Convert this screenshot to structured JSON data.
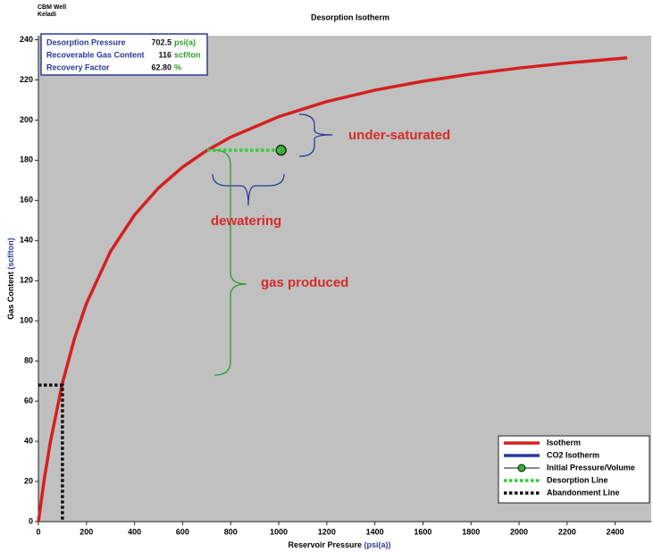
{
  "chart_data": {
    "type": "line",
    "well_label": "CBM Well",
    "well_name": "Keladi",
    "title": "Desorption Isotherm",
    "x_label": {
      "text": "Reservoir Pressure",
      "unit": "(psi(a))"
    },
    "y_label": {
      "text": "Gas Content",
      "unit": "(scf/ton)"
    },
    "xlim": [
      0,
      2550
    ],
    "xticks": [
      0,
      200,
      400,
      600,
      800,
      1000,
      1200,
      1400,
      1600,
      1800,
      2000,
      2200,
      2400
    ],
    "ylim": [
      0,
      242
    ],
    "yticks": [
      0,
      20,
      40,
      60,
      80,
      100,
      120,
      140,
      160,
      180,
      200,
      220,
      240
    ],
    "background": "#c0c0c0",
    "legend": "bottom-right",
    "info": [
      {
        "label": "Desorption Pressure",
        "value": "702.5",
        "unit": "psi(a)"
      },
      {
        "label": "Recoverable Gas Content",
        "value": "116",
        "unit": "scf/ton"
      },
      {
        "label": "Recovery Factor",
        "value": "62.80",
        "unit": "%"
      }
    ],
    "annotations": [
      "under-saturated",
      "dewatering",
      "gas produced"
    ],
    "series": [
      {
        "name": "Isotherm",
        "color": "#d42020",
        "style": "solid",
        "x": [
          0,
          25,
          50,
          100,
          150,
          200,
          300,
          400,
          500,
          600,
          700,
          800,
          1000,
          1200,
          1400,
          1600,
          1800,
          2000,
          2200,
          2450
        ],
        "values": [
          0,
          21.6,
          39.8,
          69.0,
          91.2,
          108.7,
          134.6,
          152.7,
          166.2,
          176.6,
          184.8,
          191.5,
          201.7,
          209.2,
          214.9,
          219.3,
          222.9,
          225.9,
          228.4,
          231.0
        ]
      },
      {
        "name": "CO2 Isotherm",
        "color": "#2a3a9a",
        "style": "solid",
        "x": [],
        "values": []
      },
      {
        "name": "Initial Pressure/Volume",
        "color": "#3cb030",
        "style": "marker",
        "x": [
          1010
        ],
        "values": [
          185
        ]
      },
      {
        "name": "Desorption Line",
        "color": "#33cc33",
        "style": "dotted",
        "x": [
          702.5,
          1010
        ],
        "values": [
          185,
          185
        ]
      },
      {
        "name": "Abandonment Line",
        "color": "#111111",
        "style": "dotted",
        "x": [
          0,
          100,
          100
        ],
        "values": [
          68,
          68,
          0
        ]
      }
    ]
  }
}
